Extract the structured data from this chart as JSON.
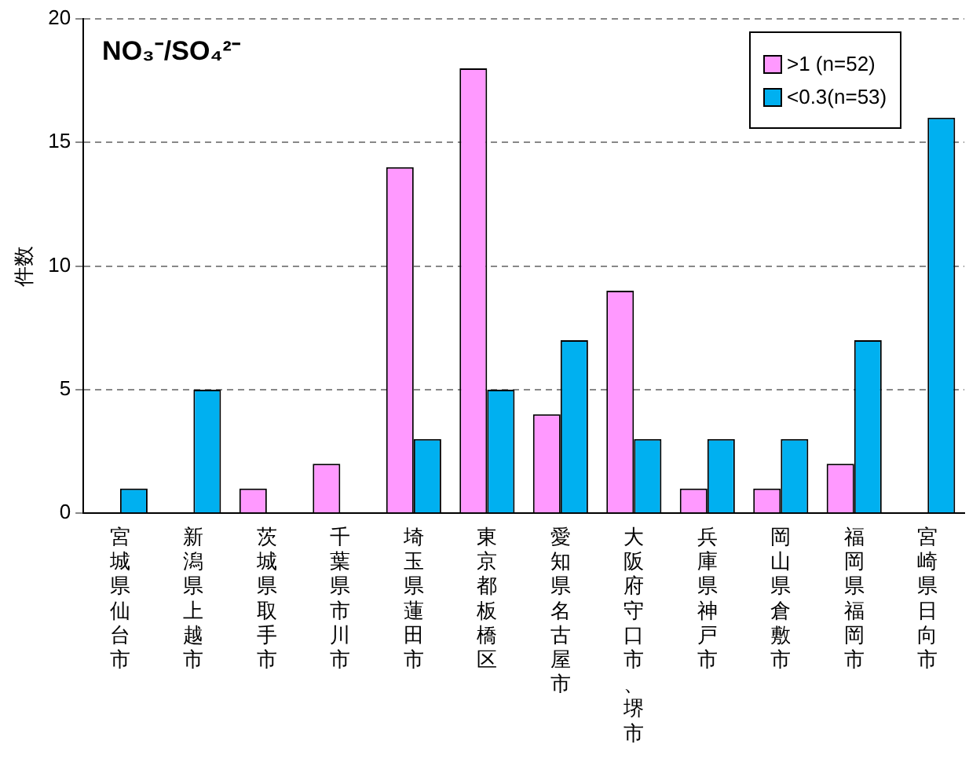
{
  "chart_data": {
    "type": "bar",
    "title": "NO₃⁻/SO₄²⁻",
    "ylabel": "件数",
    "categories": [
      "宮城県仙台市",
      "新潟県上越市",
      "茨城県取手市",
      "千葉県市川市",
      "埼玉県蓮田市",
      "東京都板橋区",
      "愛知県名古屋市",
      "大阪府守口市、堺市",
      "兵庫県神戸市",
      "岡山県倉敷市",
      "福岡県福岡市",
      "宮崎県日向市"
    ],
    "series": [
      {
        "name": ">1 (n=52)",
        "color": "#ff99ff",
        "values": [
          0,
          0,
          1,
          2,
          14,
          18,
          4,
          9,
          1,
          1,
          2,
          0
        ]
      },
      {
        "name": "<0.3(n=53)",
        "color": "#00b0f0",
        "values": [
          1,
          5,
          0,
          0,
          3,
          5,
          7,
          3,
          3,
          3,
          7,
          16
        ]
      }
    ],
    "ylim": [
      0,
      20
    ],
    "yticks": [
      0,
      5,
      10,
      15,
      20
    ],
    "grid": "y",
    "legend": "top right"
  }
}
